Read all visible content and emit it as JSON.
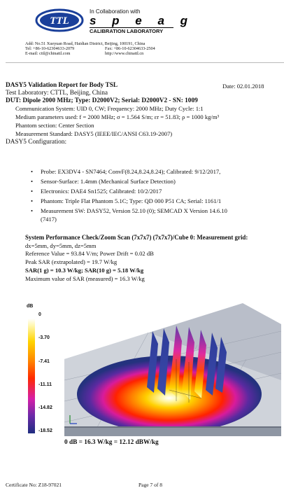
{
  "header": {
    "logo_text": "TTL",
    "collaboration": "In Collaboration with",
    "speag": "s p e a g",
    "calibration_lab": "CALIBRATION LABORATORY",
    "address_line1": "Add: No.51 Xueyuan Road, Haidian District, Beijing, 100191, China",
    "tel": "Tel: +86-10-62304633-2079",
    "fax": "Fax: +86-10-62304633-2504",
    "email": "E-mail: cttl@chinattl.com",
    "web": "http://www.chinattl.cn"
  },
  "report": {
    "title": "DASY5 Validation Report for Body TSL",
    "date": "Date: 02.01.2018",
    "lab": "Test Laboratory: CTTL, Beijing, China",
    "dut": "DUT: Dipole 2000 MHz; Type: D2000V2; Serial: D2000V2 - SN: 1009",
    "comm": "Communication System: UID 0, CW; Frequency: 2000 MHz; Duty Cycle: 1:1",
    "medium": "Medium parameters used: f = 2000 MHz; σ = 1.564 S/m; εr = 51.83; ρ = 1000 kg/m³",
    "phantom_section": "Phantom section: Center Section",
    "standard": "Measurement Standard: DASY5 (IEEE/IEC/ANSI C63.19-2007)",
    "config_heading": "DASY5 Configuration:"
  },
  "config": [
    "Probe: EX3DV4 - SN7464; ConvF(8.24,8.24,8.24); Calibrated: 9/12/2017,",
    "Sensor-Surface: 1.4mm (Mechanical Surface Detection)",
    "Electronics: DAE4 Sn1525; Calibrated: 10/2/2017",
    "Phantom: Triple Flat Phantom 5.1C; Type: QD 000 P51 CA; Serial: 1161/1",
    "Measurement SW: DASY52, Version 52.10 (0); SEMCAD X Version 14.6.10"
  ],
  "config_cont": "(7417)",
  "check": {
    "heading": "System Performance Check/Zoom Scan (7x7x7) (7x7x7)/Cube 0: Measurement grid:",
    "grid": "dx=5mm, dy=5mm, dz=5mm",
    "reference": "Reference Value = 93.84 V/m; Power Drift = 0.02 dB",
    "peak": "Peak SAR (extrapolated) = 19.7 W/kg",
    "sar": "SAR(1 g) = 10.3 W/kg; SAR(10 g) = 5.18 W/kg",
    "max": "Maximum value of SAR (measured) = 16.3 W/kg"
  },
  "legend": {
    "unit": "dB",
    "ticks": [
      "0",
      "-3.70",
      "-7.41",
      "-11.11",
      "-14.82",
      "-18.52"
    ]
  },
  "figure_caption": "0 dB = 16.3 W/kg = 12.12 dBW/kg",
  "footer": {
    "certificate": "Certificate No: Z18-97021",
    "page": "Page 7 of 8"
  }
}
